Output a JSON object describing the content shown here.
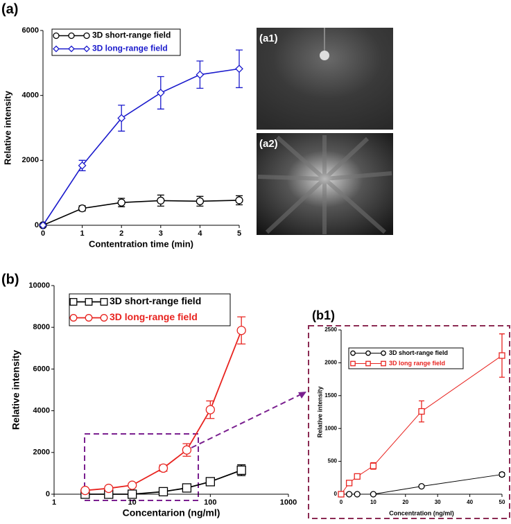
{
  "figure_labels": [
    "(a)",
    "(b)"
  ],
  "images": [
    {
      "label": "(a1)"
    },
    {
      "label": "(a2)"
    }
  ],
  "chart_data": [
    {
      "type": "line",
      "panel": "a",
      "xlabel": "Contentration time (min)",
      "ylabel": "Relative intensity",
      "x": [
        0,
        1,
        2,
        3,
        4,
        5
      ],
      "xlim": [
        0,
        5
      ],
      "xticks": [
        0,
        1,
        2,
        3,
        4,
        5
      ],
      "ylim": [
        0,
        6000
      ],
      "yticks": [
        0,
        2000,
        4000,
        6000
      ],
      "legend": "upper left",
      "series": [
        {
          "name": "3D short-range field",
          "color": "#000000",
          "marker": "circle",
          "values": [
            0,
            520,
            700,
            760,
            740,
            770
          ],
          "errors": [
            0,
            80,
            130,
            170,
            150,
            140
          ]
        },
        {
          "name": "3D long-range field",
          "color": "#1a1acc",
          "marker": "diamond",
          "values": [
            0,
            1840,
            3300,
            4080,
            4640,
            4820
          ],
          "errors": [
            0,
            160,
            400,
            500,
            420,
            580
          ]
        }
      ]
    },
    {
      "type": "line",
      "panel": "b",
      "xlabel": "Concentarion (ng/ml)",
      "ylabel": "Relative intensity",
      "xscale": "log",
      "x": [
        2.5,
        5,
        10,
        25,
        50,
        100,
        250
      ],
      "xlim": [
        1,
        1000
      ],
      "xticks": [
        1,
        10,
        100,
        1000
      ],
      "ylim": [
        0,
        10000
      ],
      "yticks": [
        0,
        2000,
        4000,
        6000,
        8000,
        10000
      ],
      "legend": "upper left",
      "series": [
        {
          "name": "3D short-range field",
          "color": "#000000",
          "marker": "square",
          "values": [
            0,
            0,
            0,
            120,
            300,
            600,
            1150
          ],
          "errors": [
            60,
            60,
            60,
            90,
            110,
            160,
            260
          ]
        },
        {
          "name": "3D long-range field",
          "color": "#e8231f",
          "marker": "circle",
          "values": [
            180,
            280,
            430,
            1250,
            2120,
            4050,
            7850
          ],
          "errors": [
            60,
            60,
            80,
            150,
            300,
            420,
            650
          ]
        }
      ]
    },
    {
      "type": "line",
      "panel": "b1",
      "title": "(b1)",
      "xlabel": "Concentration (ng/ml)",
      "ylabel": "Relative intensity",
      "x": [
        0,
        2.5,
        5,
        10,
        25,
        50
      ],
      "xlim": [
        0,
        50
      ],
      "xticks": [
        0,
        10,
        20,
        30,
        40,
        50
      ],
      "ylim": [
        0,
        2500
      ],
      "yticks": [
        0,
        500,
        1000,
        1500,
        2000,
        2500
      ],
      "legend": "upper left",
      "series": [
        {
          "name": "3D short-range field",
          "color": "#000000",
          "marker": "circle",
          "values": [
            0,
            0,
            0,
            0,
            120,
            300
          ],
          "errors": [
            0,
            0,
            0,
            0,
            20,
            30
          ]
        },
        {
          "name": "3D long range field",
          "color": "#e8231f",
          "marker": "square",
          "values": [
            0,
            170,
            270,
            430,
            1260,
            2110
          ],
          "errors": [
            0,
            20,
            30,
            50,
            160,
            330
          ]
        }
      ]
    }
  ]
}
